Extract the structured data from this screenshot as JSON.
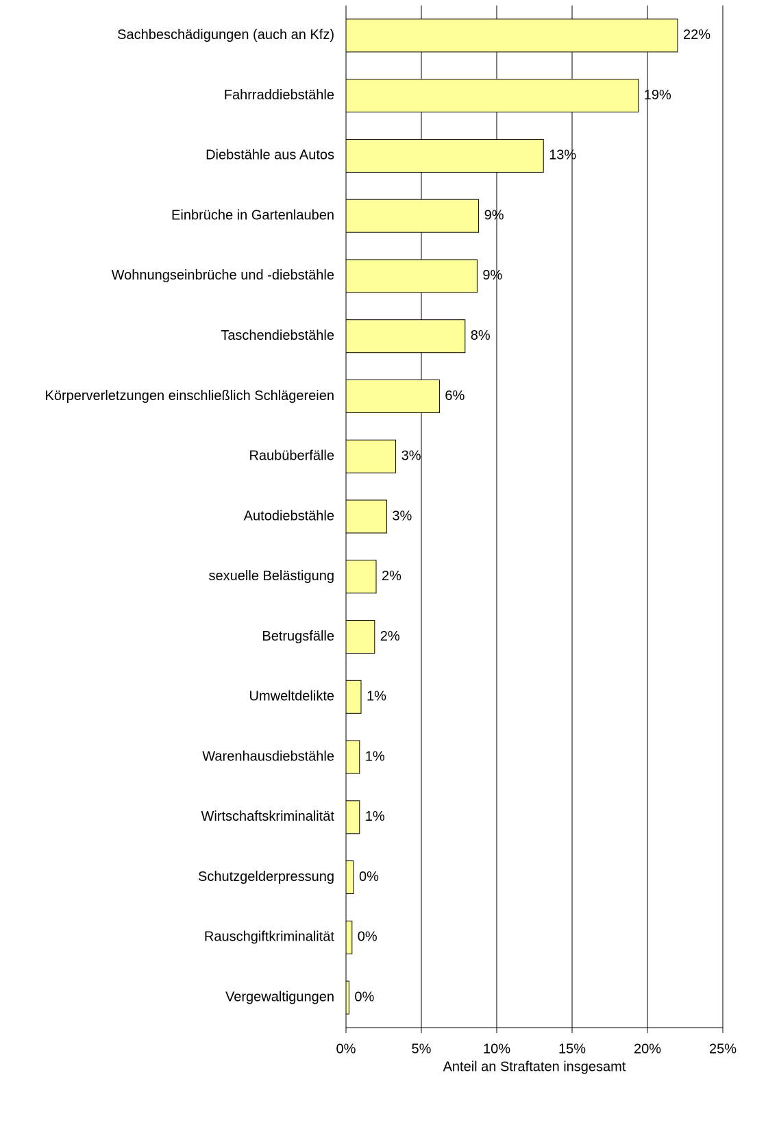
{
  "chart_data": {
    "type": "bar",
    "orientation": "horizontal",
    "x_axis_label": "Anteil an Straftaten insgesamt",
    "categories": [
      "Sachbeschädigungen (auch an Kfz)",
      "Fahrraddiebstähle",
      "Diebstähle aus Autos",
      "Einbrüche in Gartenlauben",
      "Wohnungseinbrüche und -diebstähle",
      "Taschendiebstähle",
      "Körperverletzungen einschließlich Schlägereien",
      "Raubüberfälle",
      "Autodiebstähle",
      "sexuelle Belästigung",
      "Betrugsfälle",
      "Umweltdelikte",
      "Warenhausdiebstähle",
      "Wirtschaftskriminalität",
      "Schutzgelderpressung",
      "Rauschgiftkriminalität",
      "Vergewaltigungen"
    ],
    "values": [
      22.0,
      19.4,
      13.1,
      8.8,
      8.7,
      7.9,
      6.2,
      3.3,
      2.7,
      2.0,
      1.9,
      1.0,
      0.9,
      0.9,
      0.5,
      0.4,
      0.2
    ],
    "value_labels": [
      "22%",
      "19%",
      "13%",
      "9%",
      "9%",
      "8%",
      "6%",
      "3%",
      "3%",
      "2%",
      "2%",
      "1%",
      "1%",
      "1%",
      "0%",
      "0%",
      "0%"
    ],
    "color": "#ffff99",
    "xlim": [
      0,
      25
    ],
    "xticks": [
      {
        "value": 0,
        "label": "0%"
      },
      {
        "value": 5,
        "label": "5%"
      },
      {
        "value": 10,
        "label": "10%"
      },
      {
        "value": 15,
        "label": "15%"
      },
      {
        "value": 20,
        "label": "20%"
      },
      {
        "value": 25,
        "label": "25%"
      }
    ],
    "grid": true
  }
}
